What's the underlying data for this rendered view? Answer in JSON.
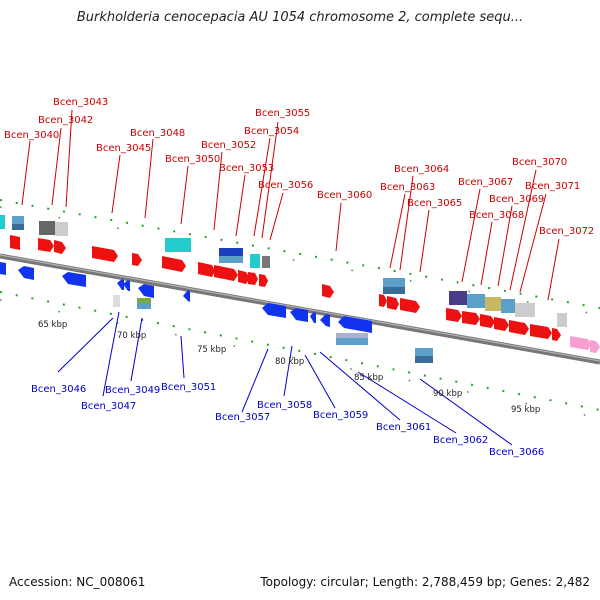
{
  "header": {
    "title": "Burkholderia cenocepacia AU 1054 chromosome 2, complete sequ..."
  },
  "footer": {
    "accession": "Accession: NC_008061",
    "summary": "Topology: circular; Length: 2,788,459 bp; Genes: 2,482"
  },
  "colors": {
    "forward_label": "#cc0000",
    "reverse_label": "#0000cc",
    "axis": "#888888",
    "tick": "#228b22"
  },
  "ticks": [
    "65 kbp",
    "70 kbp",
    "75 kbp",
    "80 kbp",
    "85 kbp",
    "90 kbp",
    "95 kbp"
  ],
  "labels": {
    "bcen_3040": "Bcen_3040",
    "bcen_3042": "Bcen_3042",
    "bcen_3043": "Bcen_3043",
    "bcen_3045": "Bcen_3045",
    "bcen_3046": "Bcen_3046",
    "bcen_3047": "Bcen_3047",
    "bcen_3048": "Bcen_3048",
    "bcen_3049": "Bcen_3049",
    "bcen_3050": "Bcen_3050",
    "bcen_3051": "Bcen_3051",
    "bcen_3052": "Bcen_3052",
    "bcen_3053": "Bcen_3053",
    "bcen_3054": "Bcen_3054",
    "bcen_3055": "Bcen_3055",
    "bcen_3056": "Bcen_3056",
    "bcen_3057": "Bcen_3057",
    "bcen_3058": "Bcen_3058",
    "bcen_3059": "Bcen_3059",
    "bcen_3060": "Bcen_3060",
    "bcen_3061": "Bcen_3061",
    "bcen_3062": "Bcen_3062",
    "bcen_3063": "Bcen_3063",
    "bcen_3064": "Bcen_3064",
    "bcen_3065": "Bcen_3065",
    "bcen_3066": "Bcen_3066",
    "bcen_3067": "Bcen_3067",
    "bcen_3068": "Bcen_3068",
    "bcen_3069": "Bcen_3069",
    "bcen_3070": "Bcen_3070",
    "bcen_3071": "Bcen_3071",
    "bcen_3072": "Bcen_3072"
  }
}
